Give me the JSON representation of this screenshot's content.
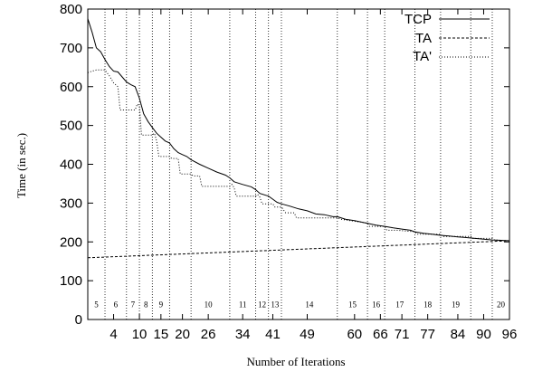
{
  "chart_data": {
    "type": "line",
    "xlabel": "Number of Iterations",
    "ylabel": "Time (in sec.)",
    "xlim": [
      -2,
      96
    ],
    "ylim": [
      0,
      800
    ],
    "x_ticks": [
      4,
      10,
      15,
      20,
      26,
      34,
      41,
      49,
      60,
      66,
      71,
      77,
      84,
      90,
      96
    ],
    "y_ticks": [
      0,
      100,
      200,
      300,
      400,
      500,
      600,
      700,
      800
    ],
    "boundaries": [
      2,
      7,
      10,
      13,
      17,
      22,
      31,
      37,
      40,
      43,
      56,
      63,
      67,
      74,
      80,
      87,
      92
    ],
    "bucket_labels": [
      {
        "label": "5",
        "x": 0
      },
      {
        "label": "6",
        "x": 4.5
      },
      {
        "label": "7",
        "x": 8.5
      },
      {
        "label": "8",
        "x": 11.5
      },
      {
        "label": "9",
        "x": 15
      },
      {
        "label": "10",
        "x": 26
      },
      {
        "label": "11",
        "x": 34
      },
      {
        "label": "12",
        "x": 38.5
      },
      {
        "label": "13",
        "x": 41.5
      },
      {
        "label": "14",
        "x": 49.5
      },
      {
        "label": "15",
        "x": 59.5
      },
      {
        "label": "16",
        "x": 65
      },
      {
        "label": "17",
        "x": 70.5
      },
      {
        "label": "18",
        "x": 77
      },
      {
        "label": "19",
        "x": 83.5
      },
      {
        "label": "20",
        "x": 94
      }
    ],
    "legend_position": "top-right",
    "grid": false,
    "series": [
      {
        "name": "TCP",
        "style": "solid",
        "points": [
          [
            -2,
            775
          ],
          [
            -1,
            740
          ],
          [
            0,
            700
          ],
          [
            1,
            690
          ],
          [
            2,
            670
          ],
          [
            3,
            652
          ],
          [
            4,
            640
          ],
          [
            5,
            638
          ],
          [
            6,
            625
          ],
          [
            7,
            612
          ],
          [
            8,
            605
          ],
          [
            9,
            600
          ],
          [
            10,
            570
          ],
          [
            11,
            530
          ],
          [
            12,
            510
          ],
          [
            13,
            495
          ],
          [
            14,
            480
          ],
          [
            15,
            470
          ],
          [
            16,
            460
          ],
          [
            17,
            455
          ],
          [
            18,
            440
          ],
          [
            19,
            430
          ],
          [
            20,
            425
          ],
          [
            21,
            420
          ],
          [
            22,
            412
          ],
          [
            24,
            400
          ],
          [
            26,
            390
          ],
          [
            28,
            380
          ],
          [
            30,
            372
          ],
          [
            31,
            365
          ],
          [
            32,
            355
          ],
          [
            34,
            348
          ],
          [
            36,
            342
          ],
          [
            37,
            335
          ],
          [
            38,
            325
          ],
          [
            40,
            318
          ],
          [
            41,
            310
          ],
          [
            42,
            302
          ],
          [
            43,
            298
          ],
          [
            45,
            292
          ],
          [
            47,
            285
          ],
          [
            49,
            280
          ],
          [
            51,
            272
          ],
          [
            53,
            270
          ],
          [
            55,
            265
          ],
          [
            56,
            265
          ],
          [
            58,
            258
          ],
          [
            60,
            255
          ],
          [
            62,
            250
          ],
          [
            63,
            248
          ],
          [
            65,
            243
          ],
          [
            67,
            240
          ],
          [
            69,
            236
          ],
          [
            71,
            233
          ],
          [
            73,
            230
          ],
          [
            74,
            226
          ],
          [
            76,
            222
          ],
          [
            78,
            220
          ],
          [
            80,
            217
          ],
          [
            82,
            215
          ],
          [
            84,
            213
          ],
          [
            86,
            211
          ],
          [
            88,
            209
          ],
          [
            90,
            207
          ],
          [
            92,
            205
          ],
          [
            94,
            204
          ],
          [
            96,
            203
          ]
        ]
      },
      {
        "name": "TA",
        "style": "dashed",
        "points": [
          [
            -2,
            159
          ],
          [
            96,
            203
          ]
        ]
      },
      {
        "name": "TA'",
        "style": "dotted",
        "points": [
          [
            -2,
            636
          ],
          [
            -1,
            640
          ],
          [
            0,
            643
          ],
          [
            2,
            643
          ],
          [
            3,
            628
          ],
          [
            4,
            610
          ],
          [
            5,
            600
          ],
          [
            5.5,
            540
          ],
          [
            9,
            540
          ],
          [
            9.5,
            555
          ],
          [
            10,
            550
          ],
          [
            10.5,
            475
          ],
          [
            13,
            475
          ],
          [
            13.5,
            480
          ],
          [
            14,
            460
          ],
          [
            14.5,
            420
          ],
          [
            17,
            420
          ],
          [
            17.5,
            415
          ],
          [
            19,
            415
          ],
          [
            19.5,
            375
          ],
          [
            22,
            375
          ],
          [
            22.5,
            370
          ],
          [
            24,
            370
          ],
          [
            24.5,
            343
          ],
          [
            31,
            343
          ],
          [
            31.5,
            348
          ],
          [
            32,
            340
          ],
          [
            32.5,
            318
          ],
          [
            37,
            318
          ],
          [
            37.5,
            322
          ],
          [
            38,
            315
          ],
          [
            38.5,
            298
          ],
          [
            41,
            298
          ],
          [
            41.5,
            290
          ],
          [
            43,
            290
          ],
          [
            43.5,
            282
          ],
          [
            44,
            275
          ],
          [
            46,
            275
          ],
          [
            46.5,
            262
          ],
          [
            56,
            262
          ],
          [
            57,
            258
          ],
          [
            62,
            250
          ],
          [
            63,
            248
          ],
          [
            63.5,
            240
          ],
          [
            67,
            240
          ],
          [
            67.5,
            230
          ],
          [
            70,
            230
          ],
          [
            74,
            226
          ],
          [
            74.5,
            220
          ],
          [
            80,
            220
          ],
          [
            80.5,
            214
          ],
          [
            87,
            214
          ],
          [
            87.5,
            209
          ],
          [
            92,
            209
          ],
          [
            92.5,
            205
          ],
          [
            96,
            203
          ]
        ]
      }
    ]
  }
}
